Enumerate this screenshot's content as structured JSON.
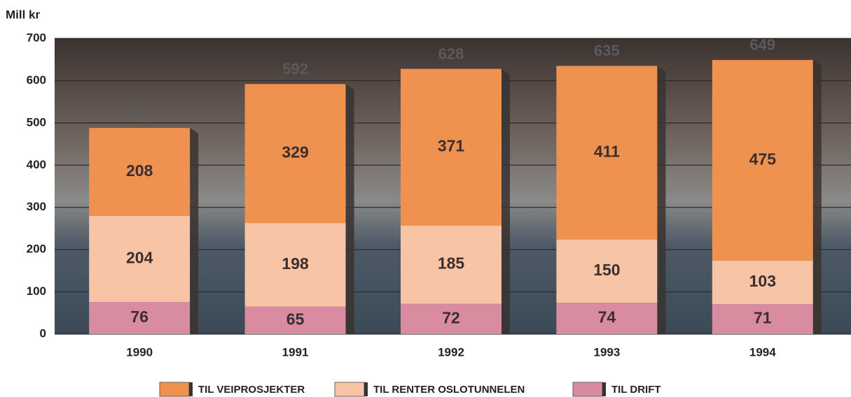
{
  "chart_data": {
    "type": "stacked_bar",
    "y_label": "Mill kr",
    "categories": [
      "1990",
      "1991",
      "1992",
      "1993",
      "1994"
    ],
    "series": [
      {
        "name": "TIL DRIFT",
        "color": "#d98ba0",
        "values": [
          76,
          65,
          72,
          74,
          71
        ]
      },
      {
        "name": "TIL RENTER OSLOTUNNELEN",
        "color": "#f7c4a6",
        "values": [
          204,
          198,
          185,
          150,
          103
        ]
      },
      {
        "name": "TIL VEIPROSJEKTER",
        "color": "#f0924f",
        "values": [
          208,
          329,
          371,
          411,
          475
        ]
      }
    ],
    "totals": [
      488,
      592,
      628,
      635,
      649
    ],
    "ylim": [
      0,
      700
    ],
    "yticks": [
      0,
      100,
      200,
      300,
      400,
      500,
      600,
      700
    ],
    "grid": true
  }
}
